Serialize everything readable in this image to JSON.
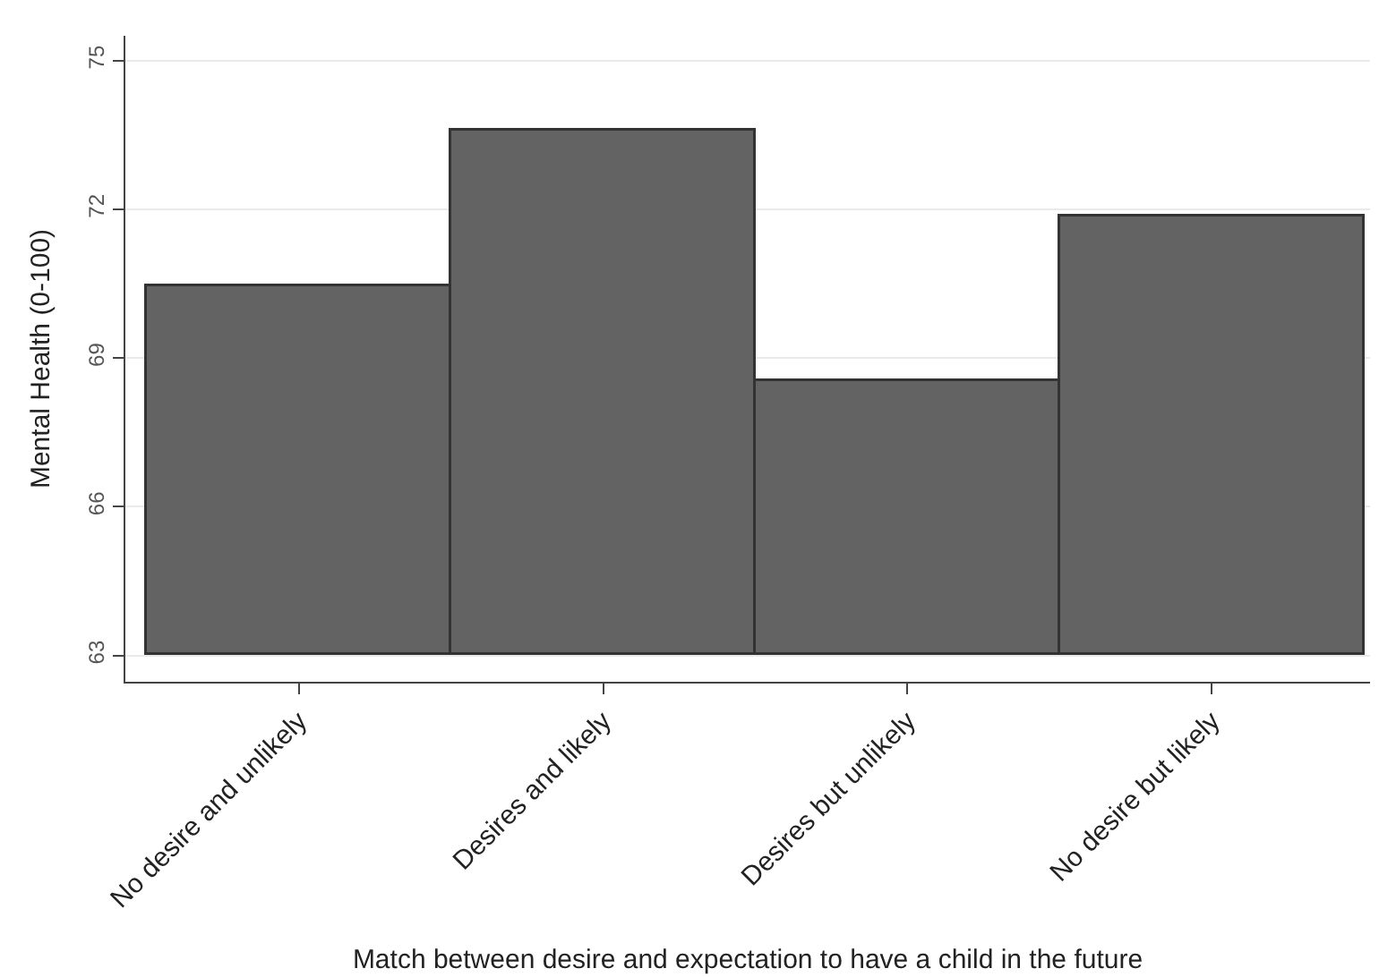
{
  "chart_data": {
    "type": "bar",
    "xlabel": "Match between desire and expectation to have a child in the future",
    "ylabel": "Mental Health (0-100)",
    "categories": [
      "No desire and unlikely",
      "Desires and likely",
      "Desires but unlikely",
      "No desire but likely"
    ],
    "base": [
      63,
      63,
      63,
      63
    ],
    "values": [
      7.44,
      10.58,
      5.55,
      8.86
    ],
    "color": "#636363",
    "ylim": [
      62.47,
      75.5
    ],
    "yticks": [
      63,
      66,
      69,
      72,
      75
    ],
    "grid": "y",
    "legend": false
  }
}
